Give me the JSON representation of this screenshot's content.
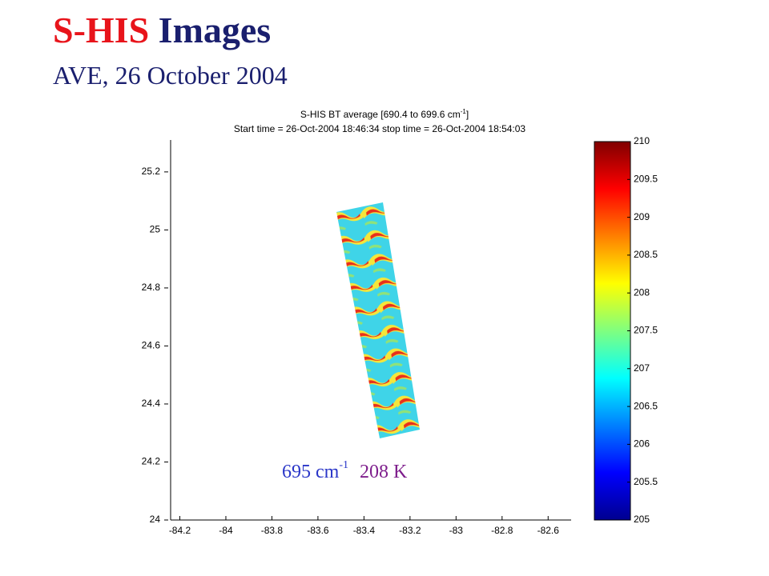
{
  "slide": {
    "title_highlight": "S-HIS",
    "title_rest": "Images",
    "subtitle": "AVE, 26 October 2004",
    "annotation": {
      "wavenumber": "695 cm",
      "wavenumber_sup": "-1",
      "temperature": "208 K"
    }
  },
  "chart_data": {
    "type": "heatmap",
    "title_line1": "S-HIS BT average [690.4 to 699.6 cm",
    "title_line1_sup": "-1",
    "title_line1_end": "]",
    "title_line2": "Start time = 26-Oct-2004 18:46:34  stop time = 26-Oct-2004 18:54:03",
    "xlim": [
      -84.24,
      -82.5
    ],
    "xticks": [
      -84.2,
      -84,
      -83.8,
      -83.6,
      -83.4,
      -83.2,
      -83,
      -82.8,
      -82.6
    ],
    "ylim": [
      24,
      25.31
    ],
    "yticks": [
      24,
      24.2,
      24.4,
      24.6,
      24.8,
      25,
      25.2
    ],
    "clim": [
      205,
      210
    ],
    "cticks": [
      205,
      205.5,
      206,
      206.5,
      207,
      207.5,
      208,
      208.5,
      209,
      209.5,
      210
    ],
    "colormap": "jet"
  }
}
